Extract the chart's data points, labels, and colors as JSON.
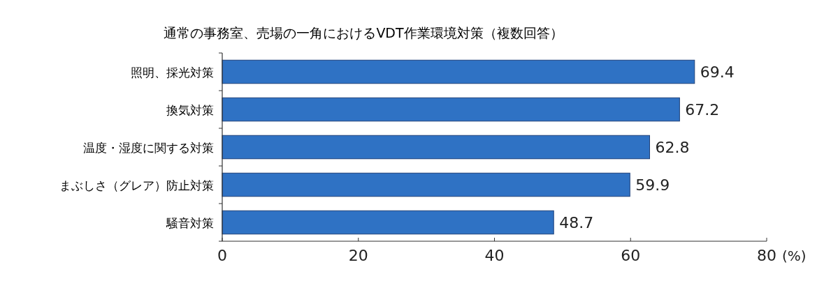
{
  "chart_data": {
    "type": "bar",
    "orientation": "horizontal",
    "title": "通常の事務室、売場の一角におけるVDT作業環境対策（複数回答）",
    "xlabel": "(%)",
    "categories": [
      "照明、採光対策",
      "換気対策",
      "温度・湿度に関する対策",
      "まぶしさ（グレア）防止対策",
      "騒音対策"
    ],
    "values": [
      69.4,
      67.2,
      62.8,
      59.9,
      48.7
    ],
    "color": "#2f72c4",
    "xlim": [
      0,
      80
    ],
    "xticks": [
      0,
      20,
      40,
      60,
      80
    ],
    "data_labels": true
  }
}
